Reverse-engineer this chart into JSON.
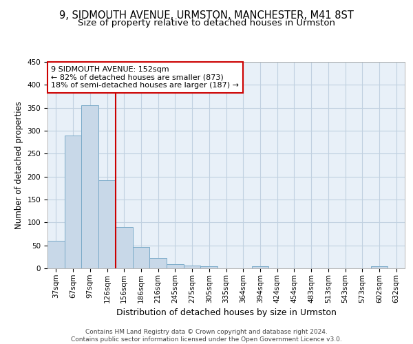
{
  "title1": "9, SIDMOUTH AVENUE, URMSTON, MANCHESTER, M41 8ST",
  "title2": "Size of property relative to detached houses in Urmston",
  "xlabel": "Distribution of detached houses by size in Urmston",
  "ylabel": "Number of detached properties",
  "bar_color": "#c8d8e8",
  "bar_edge_color": "#7aaac8",
  "grid_color": "#c0d0e0",
  "background_color": "#e8f0f8",
  "categories": [
    "37sqm",
    "67sqm",
    "97sqm",
    "126sqm",
    "156sqm",
    "186sqm",
    "216sqm",
    "245sqm",
    "275sqm",
    "305sqm",
    "335sqm",
    "364sqm",
    "394sqm",
    "424sqm",
    "454sqm",
    "483sqm",
    "513sqm",
    "543sqm",
    "573sqm",
    "602sqm",
    "632sqm"
  ],
  "values": [
    60,
    290,
    355,
    192,
    90,
    47,
    22,
    9,
    6,
    5,
    0,
    0,
    4,
    0,
    0,
    0,
    0,
    0,
    0,
    4,
    0
  ],
  "vline_x": 3.5,
  "vline_color": "#cc0000",
  "annotation_text": "9 SIDMOUTH AVENUE: 152sqm\n← 82% of detached houses are smaller (873)\n18% of semi-detached houses are larger (187) →",
  "annotation_box_color": "#ffffff",
  "annotation_box_edge": "#cc0000",
  "ylim": [
    0,
    450
  ],
  "yticks": [
    0,
    50,
    100,
    150,
    200,
    250,
    300,
    350,
    400,
    450
  ],
  "footnote": "Contains HM Land Registry data © Crown copyright and database right 2024.\nContains public sector information licensed under the Open Government Licence v3.0.",
  "title1_fontsize": 10.5,
  "title2_fontsize": 9.5,
  "xlabel_fontsize": 9,
  "ylabel_fontsize": 8.5,
  "tick_fontsize": 7.5,
  "annotation_fontsize": 8,
  "footnote_fontsize": 6.5
}
